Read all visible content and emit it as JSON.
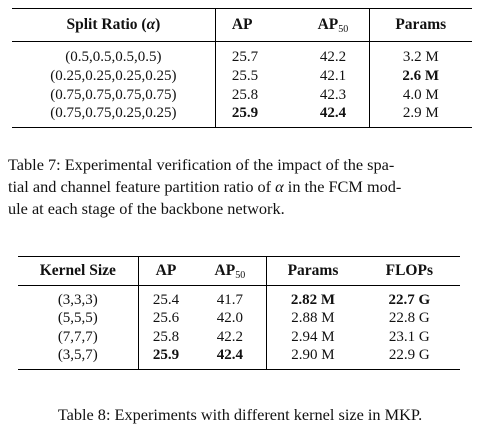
{
  "table7": {
    "headers": {
      "split_ratio": "Split Ratio (",
      "alpha_symbol": "α",
      "split_ratio_close": ")",
      "ap": "AP",
      "ap50_base": "AP",
      "ap50_sub": "50",
      "params": "Params"
    },
    "rows": [
      {
        "ratio": "(0.5,0.5,0.5,0.5)",
        "ap": "25.7",
        "ap50": "42.2",
        "params": "3.2 M",
        "bold": []
      },
      {
        "ratio": "(0.25,0.25,0.25,0.25)",
        "ap": "25.5",
        "ap50": "42.1",
        "params": "2.6 M",
        "bold": [
          "params"
        ]
      },
      {
        "ratio": "(0.75,0.75,0.75,0.75)",
        "ap": "25.8",
        "ap50": "42.3",
        "params": "4.0 M",
        "bold": []
      },
      {
        "ratio": "(0.75,0.75,0.25,0.25)",
        "ap": "25.9",
        "ap50": "42.4",
        "params": "2.9 M",
        "bold": [
          "ap",
          "ap50"
        ]
      }
    ],
    "caption": {
      "line1": "Table 7: Experimental verification of the impact of the spa-",
      "line2_pre": "tial and channel feature partition ratio of ",
      "line2_alpha": "α",
      "line2_post": " in the FCM mod-",
      "line3": "ule at each stage of the backbone network."
    }
  },
  "table8": {
    "headers": {
      "kernel": "Kernel Size",
      "ap": "AP",
      "ap50_base": "AP",
      "ap50_sub": "50",
      "params": "Params",
      "flops": "FLOPs"
    },
    "rows": [
      {
        "kernel": "(3,3,3)",
        "ap": "25.4",
        "ap50": "41.7",
        "params": "2.82 M",
        "flops": "22.7 G",
        "bold": [
          "params",
          "flops"
        ]
      },
      {
        "kernel": "(5,5,5)",
        "ap": "25.6",
        "ap50": "42.0",
        "params": "2.88 M",
        "flops": "22.8 G",
        "bold": []
      },
      {
        "kernel": "(7,7,7)",
        "ap": "25.8",
        "ap50": "42.2",
        "params": "2.94 M",
        "flops": "23.1 G",
        "bold": []
      },
      {
        "kernel": "(3,5,7)",
        "ap": "25.9",
        "ap50": "42.4",
        "params": "2.90 M",
        "flops": "22.9 G",
        "bold": [
          "ap",
          "ap50"
        ]
      }
    ],
    "caption": "Table 8: Experiments with different kernel size in MKP."
  }
}
